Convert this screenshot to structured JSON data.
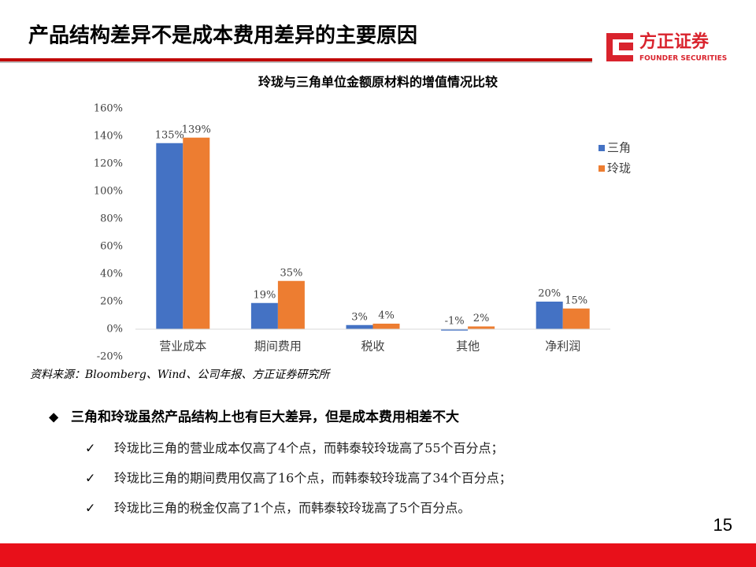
{
  "header": {
    "title": "产品结构差异不是成本费用差异的主要原因",
    "logo": {
      "name": "方正证券",
      "english": "FOUNDER SECURITIES"
    }
  },
  "chart_data": {
    "type": "bar",
    "title": "玲珑与三角单位金额原材料的增值情况比较",
    "categories": [
      "营业成本",
      "期间费用",
      "税收",
      "其他",
      "净利润"
    ],
    "series": [
      {
        "name": "三角",
        "color": "#4472c4",
        "values": [
          135,
          19,
          3,
          -1,
          20
        ],
        "value_labels": [
          "135%",
          "19%",
          "3%",
          "-1%",
          "20%"
        ]
      },
      {
        "name": "玲珑",
        "color": "#ed7d31",
        "values": [
          139,
          35,
          4,
          2,
          15
        ],
        "value_labels": [
          "139%",
          "35%",
          "4%",
          "2%",
          "15%"
        ]
      }
    ],
    "ylim": [
      -20,
      160
    ],
    "yticks": [
      {
        "value": -20,
        "label": "-20%"
      },
      {
        "value": 0,
        "label": "0%"
      },
      {
        "value": 20,
        "label": "20%"
      },
      {
        "value": 40,
        "label": "40%"
      },
      {
        "value": 60,
        "label": "60%"
      },
      {
        "value": 80,
        "label": "80%"
      },
      {
        "value": 100,
        "label": "100%"
      },
      {
        "value": 120,
        "label": "120%"
      },
      {
        "value": 140,
        "label": "140%"
      },
      {
        "value": 160,
        "label": "160%"
      }
    ],
    "grid": false,
    "legend": "right"
  },
  "source": "资料来源：Bloomberg、Wind、公司年报、方正证券研究所",
  "bullets": {
    "main": "三角和玲珑虽然产品结构上也有巨大差异，但是成本费用相差不大",
    "items": [
      "玲珑比三角的营业成本仅高了4个点，而韩泰较玲珑高了55个百分点；",
      "玲珑比三角的期间费用仅高了16个点，而韩泰较玲珑高了34个百分点；",
      "玲珑比三角的税金仅高了1个点，而韩泰较玲珑高了5个百分点。"
    ]
  },
  "page_number": "15"
}
